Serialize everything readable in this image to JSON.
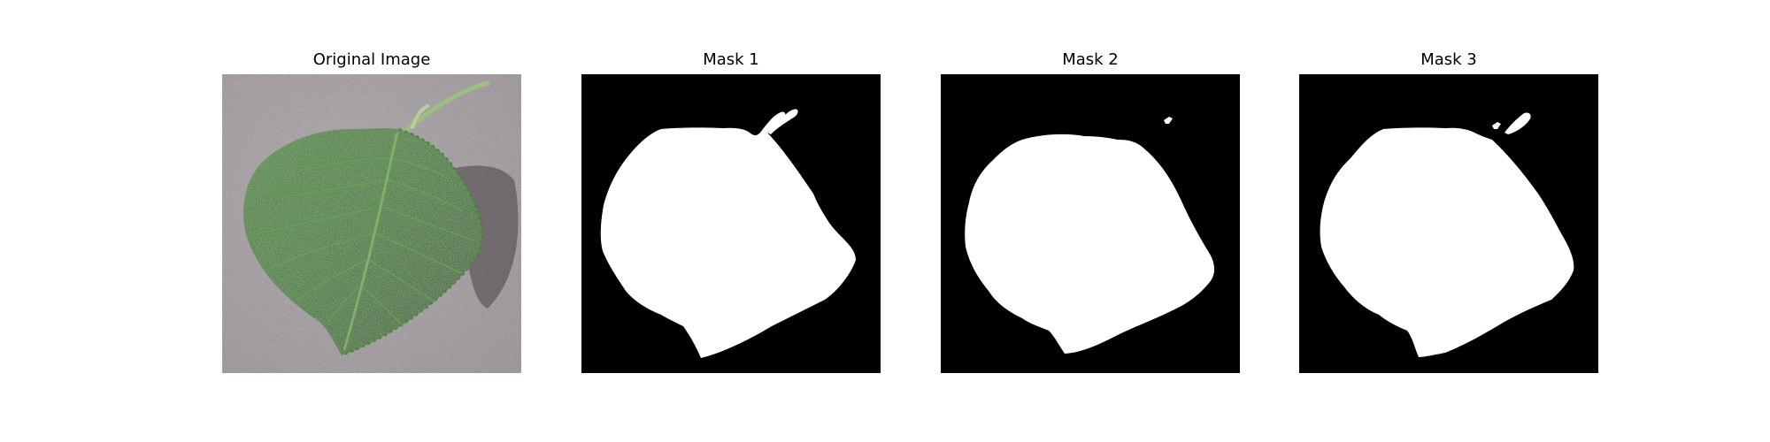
{
  "panels": [
    {
      "title": "Original Image",
      "kind": "photo",
      "subject": "leaf-photo"
    },
    {
      "title": "Mask 1",
      "kind": "mask",
      "variant": 1
    },
    {
      "title": "Mask 2",
      "kind": "mask",
      "variant": 2
    },
    {
      "title": "Mask 3",
      "kind": "mask",
      "variant": 3
    }
  ],
  "colors": {
    "background": "#ffffff",
    "mask_background": "#000000",
    "mask_foreground": "#ffffff",
    "ground": "#a59ea3",
    "leaf": "#2f6b22",
    "leaf_dark": "#1f4d17",
    "leaf_vein": "#7fb06a",
    "shadow": "#5f595d",
    "stem": "#9ec07e"
  }
}
